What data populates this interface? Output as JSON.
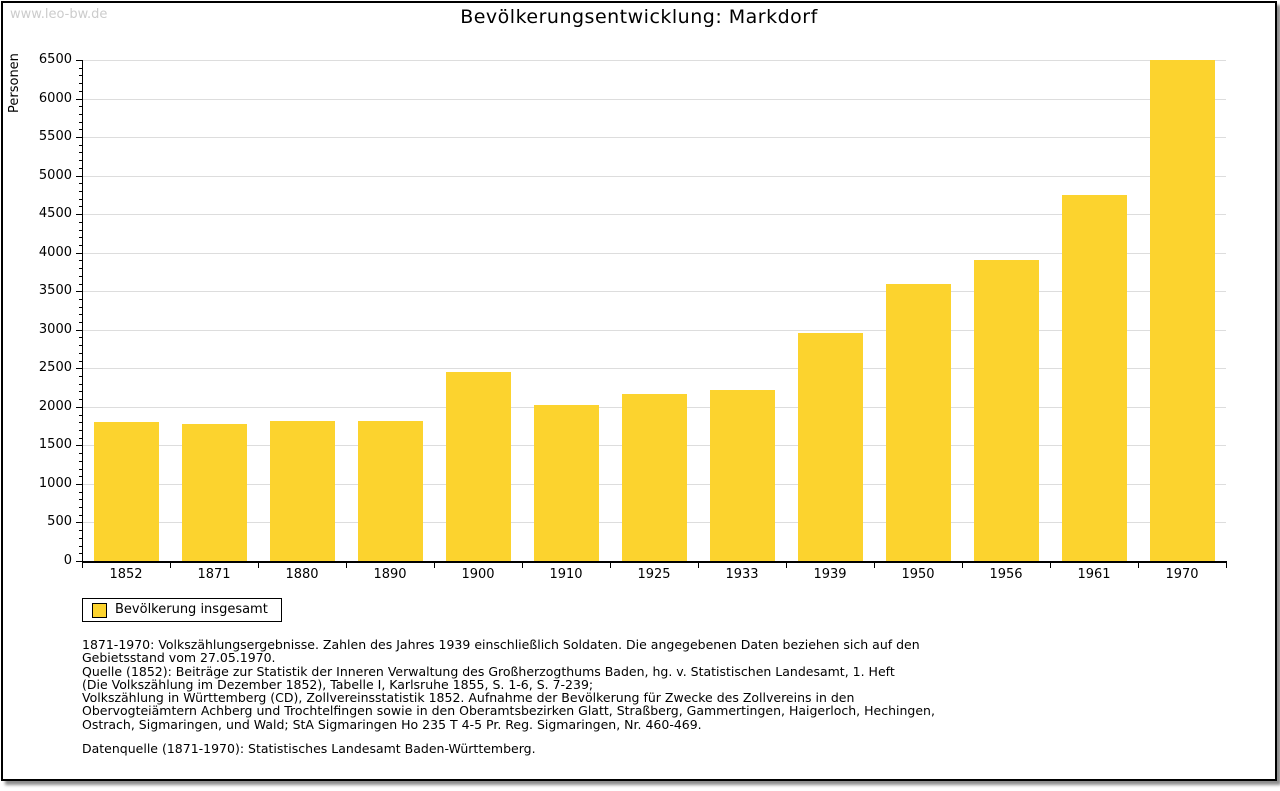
{
  "page": {
    "watermark": "www.leo-bw.de",
    "title": "Bevölkerungsentwicklung: Markdorf"
  },
  "legend": {
    "label": "Bevölkerung insgesamt",
    "swatch_color": "#FCD32E"
  },
  "chart_data": {
    "type": "bar",
    "title": "Bevölkerungsentwicklung: Markdorf",
    "xlabel": "",
    "ylabel": "Personen",
    "categories": [
      "1852",
      "1871",
      "1880",
      "1890",
      "1900",
      "1910",
      "1925",
      "1933",
      "1939",
      "1950",
      "1956",
      "1961",
      "1970"
    ],
    "values": [
      1800,
      1780,
      1820,
      1820,
      2450,
      2020,
      2170,
      2220,
      2960,
      3600,
      3900,
      4750,
      6500
    ],
    "ylim": [
      0,
      6500
    ],
    "ytick_step": 500,
    "yminor_step": 100,
    "grid": true,
    "gridline_color": "#DDDDDD",
    "bar_color": "#FCD32E",
    "legend_entries": [
      "Bevölkerung insgesamt"
    ],
    "legend_position": "bottom-left"
  },
  "footnotes": {
    "lines": [
      "1871-1970: Volkszählungsergebnisse. Zahlen des Jahres 1939 einschließlich Soldaten. Die angegebenen Daten beziehen sich auf den",
      "Gebietsstand vom 27.05.1970.",
      "Quelle (1852): Beiträge zur Statistik der Inneren Verwaltung des Großherzogthums Baden, hg. v. Statistischen Landesamt, 1. Heft",
      "(Die Volkszählung im Dezember 1852), Tabelle I, Karlsruhe 1855, S. 1-6, S. 7-239;",
      "Volkszählung in Württemberg (CD), Zollvereinsstatistik 1852. Aufnahme der Bevölkerung für Zwecke des Zollvereins in den",
      "Obervogteiämtern Achberg und Trochtelfingen sowie in den Oberamtsbezirken Glatt, Straßberg, Gammertingen, Haigerloch, Hechingen,",
      "Ostrach, Sigmaringen, und Wald; StA Sigmaringen Ho 235 T 4-5 Pr. Reg. Sigmaringen, Nr. 460-469."
    ],
    "datasource": "Datenquelle (1871-1970): Statistisches Landesamt Baden-Württemberg."
  }
}
